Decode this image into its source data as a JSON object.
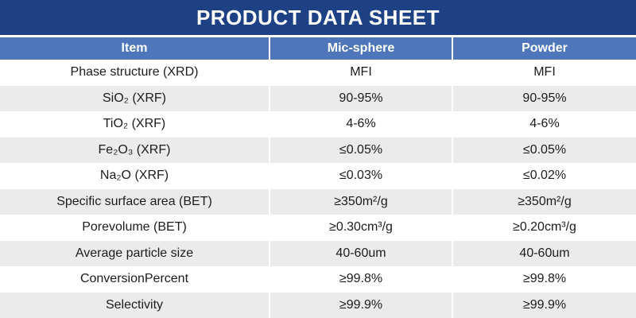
{
  "title": "PRODUCT DATA SHEET",
  "colors": {
    "title_bar_bg": "#1E4186",
    "header_row_bg": "#4D76BB",
    "alt_row_bg": "#EBEBEB",
    "row_bg": "#FFFFFF",
    "header_text": "#FFFFFF",
    "body_text": "#1C1C1C"
  },
  "table": {
    "columns": [
      "Item",
      "Mic-sphere",
      "Powder"
    ],
    "rows": [
      {
        "item": "Phase structure (XRD)",
        "mic_sphere": "MFI",
        "powder": "MFI"
      },
      {
        "item": "SiO₂ (XRF)",
        "mic_sphere": "90-95%",
        "powder": "90-95%"
      },
      {
        "item": "TiO₂ (XRF)",
        "mic_sphere": "4-6%",
        "powder": "4-6%"
      },
      {
        "item": "Fe₂O₃ (XRF)",
        "mic_sphere": "≤0.05%",
        "powder": "≤0.05%"
      },
      {
        "item": "Na₂O (XRF)",
        "mic_sphere": "≤0.03%",
        "powder": "≤0.02%"
      },
      {
        "item": "Specific surface area (BET)",
        "mic_sphere": "≥350m²/g",
        "powder": "≥350m²/g"
      },
      {
        "item": "Porevolume (BET)",
        "mic_sphere": "≥0.30cm³/g",
        "powder": "≥0.20cm³/g"
      },
      {
        "item": "Average particle size",
        "mic_sphere": "40-60um",
        "powder": "40-60um"
      },
      {
        "item": "ConversionPercent",
        "mic_sphere": "≥99.8%",
        "powder": "≥99.8%"
      },
      {
        "item": "Selectivity",
        "mic_sphere": "≥99.9%",
        "powder": "≥99.9%"
      }
    ]
  }
}
